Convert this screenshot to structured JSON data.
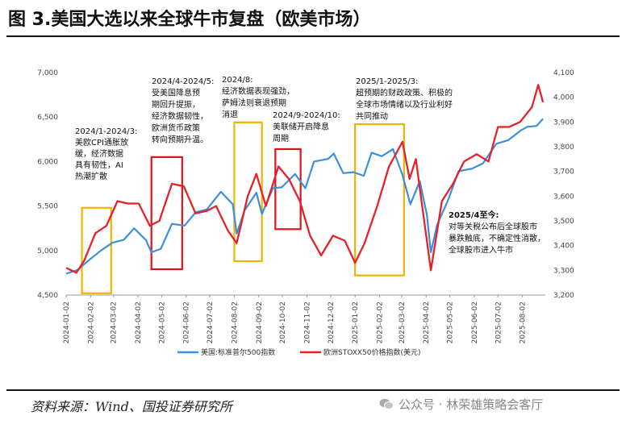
{
  "figure": {
    "title": "图 3.美国大选以来全球牛市复盘（欧美市场）",
    "source": "资料来源：Wind、国投证券研究所",
    "watermark": "公众号 · 林荣雄策略会客厅"
  },
  "chart_data": {
    "type": "line",
    "title": "",
    "xlabel": "",
    "ylabel": "",
    "x_ticks": [
      "2024-01-02",
      "2024-02-02",
      "2024-03-02",
      "2024-04-02",
      "2024-05-02",
      "2024-06-02",
      "2024-07-02",
      "2024-08-02",
      "2024-09-02",
      "2024-10-02",
      "2024-11-02",
      "2024-12-02",
      "2025-01-02",
      "2025-02-02",
      "2025-03-02",
      "2025-04-02",
      "2025-05-02",
      "2025-06-02",
      "2025-07-02",
      "2025-08-02"
    ],
    "y_left": {
      "ylim": [
        4500,
        7000
      ],
      "ticks": [
        "4,500",
        "5,000",
        "5,500",
        "6,000",
        "6,500",
        "7,000"
      ]
    },
    "y_right": {
      "ylim": [
        3200,
        4100
      ],
      "ticks": [
        "3,200",
        "3,300",
        "3,400",
        "3,500",
        "3,600",
        "3,700",
        "3,800",
        "3,900",
        "4,000",
        "4,100"
      ]
    },
    "grid": false,
    "legend_position": "bottom",
    "colors": {
      "sp500": "#3d8fdb",
      "stoxx50": "#e3222a",
      "highlight_yellow": "#f0b400",
      "highlight_red": "#d9141b"
    },
    "series": [
      {
        "name": "美国:标准普尔500指数",
        "axis": "left",
        "x": [
          "2024-01-02",
          "2024-01-16",
          "2024-02-01",
          "2024-02-15",
          "2024-03-01",
          "2024-03-15",
          "2024-03-28",
          "2024-04-12",
          "2024-04-19",
          "2024-05-01",
          "2024-05-15",
          "2024-05-31",
          "2024-06-14",
          "2024-06-28",
          "2024-07-16",
          "2024-07-31",
          "2024-08-05",
          "2024-08-15",
          "2024-08-30",
          "2024-09-06",
          "2024-09-20",
          "2024-10-01",
          "2024-10-18",
          "2024-10-31",
          "2024-11-11",
          "2024-11-29",
          "2024-12-06",
          "2024-12-18",
          "2024-12-31",
          "2025-01-13",
          "2025-01-23",
          "2025-02-05",
          "2025-02-19",
          "2025-03-03",
          "2025-03-13",
          "2025-03-25",
          "2025-04-03",
          "2025-04-08",
          "2025-04-16",
          "2025-04-30",
          "2025-05-13",
          "2025-05-30",
          "2025-06-13",
          "2025-06-30",
          "2025-07-15",
          "2025-07-31",
          "2025-08-08",
          "2025-08-20",
          "2025-08-28"
        ],
        "values": [
          4740,
          4780,
          4900,
          5000,
          5090,
          5120,
          5250,
          5120,
          4980,
          5020,
          5300,
          5280,
          5430,
          5460,
          5660,
          5520,
          5190,
          5450,
          5650,
          5410,
          5700,
          5710,
          5860,
          5700,
          6000,
          6030,
          6090,
          5870,
          5880,
          5840,
          6100,
          6060,
          6140,
          5850,
          5520,
          5780,
          5400,
          4980,
          5290,
          5570,
          5890,
          5920,
          5980,
          6200,
          6240,
          6350,
          6390,
          6400,
          6480
        ]
      },
      {
        "name": "欧洲STOXX50价格指数(美元)",
        "axis": "right",
        "x": [
          "2024-01-02",
          "2024-01-15",
          "2024-01-25",
          "2024-02-08",
          "2024-02-22",
          "2024-03-07",
          "2024-03-20",
          "2024-04-03",
          "2024-04-17",
          "2024-04-29",
          "2024-05-15",
          "2024-05-30",
          "2024-06-14",
          "2024-06-28",
          "2024-07-10",
          "2024-07-25",
          "2024-08-05",
          "2024-08-19",
          "2024-08-30",
          "2024-09-11",
          "2024-09-27",
          "2024-10-10",
          "2024-10-24",
          "2024-11-06",
          "2024-11-20",
          "2024-12-05",
          "2024-12-20",
          "2025-01-02",
          "2025-01-14",
          "2025-01-30",
          "2025-02-14",
          "2025-03-03",
          "2025-03-12",
          "2025-03-20",
          "2025-04-08",
          "2025-04-22",
          "2025-05-06",
          "2025-05-20",
          "2025-06-05",
          "2025-06-20",
          "2025-07-02",
          "2025-07-16",
          "2025-07-30",
          "2025-08-14",
          "2025-08-22",
          "2025-08-28"
        ],
        "values": [
          3310,
          3290,
          3340,
          3450,
          3480,
          3580,
          3570,
          3570,
          3480,
          3500,
          3650,
          3640,
          3530,
          3540,
          3560,
          3460,
          3410,
          3600,
          3690,
          3560,
          3720,
          3670,
          3580,
          3440,
          3360,
          3440,
          3420,
          3330,
          3410,
          3560,
          3720,
          3820,
          3670,
          3750,
          3300,
          3580,
          3650,
          3740,
          3770,
          3740,
          3880,
          3880,
          3900,
          3960,
          4050,
          3980
        ]
      }
    ],
    "annotations": [
      {
        "text": [
          "2024/1-2024/3:",
          "美欧CPI通胀放",
          "缓，经济数据",
          "具有韧性，AI",
          "热潮扩散"
        ]
      },
      {
        "text": [
          "2024/4-2024/5:",
          "受美国降息预",
          "期回升提振，",
          "经济数据韧性，",
          "欧洲货币政策",
          "转向预期升温。"
        ]
      },
      {
        "text": [
          "2024/8:",
          "经济数据表现强劲，",
          "萨姆法则衰退预期",
          "消退"
        ]
      },
      {
        "text": [
          "2024/9-2024/10:",
          "美联储开启降息",
          "周期"
        ]
      },
      {
        "text": [
          "2025/1-2025/3:",
          "超预期的财政政策、积极的",
          "全球市场情绪以及行业利好",
          "共同推动"
        ]
      },
      {
        "text": [
          "2025/4至今:",
          "对等关税公布后全球股市",
          "暴跌触底，不确定性消散，",
          "全球股市进入牛市"
        ]
      }
    ],
    "highlight_boxes": [
      {
        "color": "yellow",
        "x_range": [
          "2024-01-22",
          "2024-02-28"
        ],
        "y_range_left": [
          4520,
          5480
        ]
      },
      {
        "color": "red",
        "x_range": [
          "2024-04-19",
          "2024-05-28"
        ],
        "y_range_left": [
          4790,
          6050
        ]
      },
      {
        "color": "yellow",
        "x_range": [
          "2024-08-02",
          "2024-09-06"
        ],
        "y_range_left": [
          4880,
          6440
        ]
      },
      {
        "color": "red",
        "x_range": [
          "2024-09-23",
          "2024-10-25"
        ],
        "y_range_left": [
          5240,
          6140
        ]
      },
      {
        "color": "yellow",
        "x_range": [
          "2025-01-02",
          "2025-03-05"
        ],
        "y_range_left": [
          4720,
          6420
        ]
      }
    ]
  }
}
